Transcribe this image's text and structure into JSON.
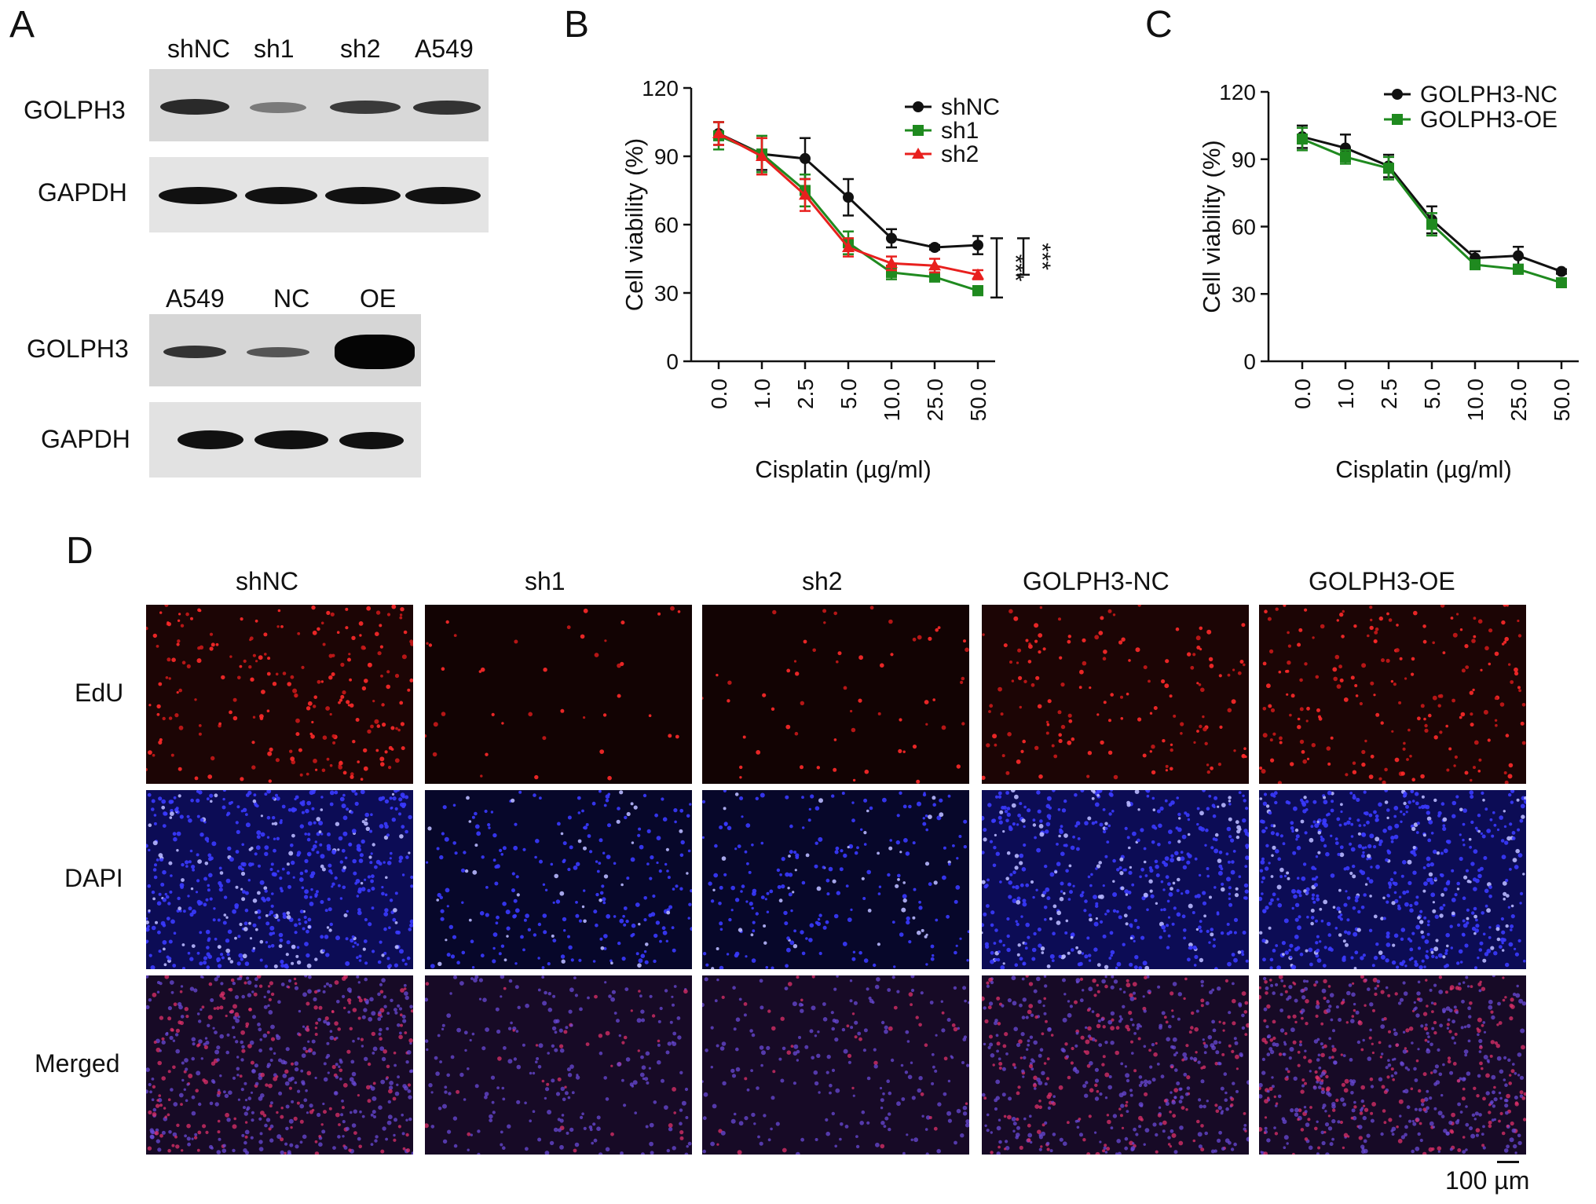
{
  "panels": {
    "A": "A",
    "B": "B",
    "C": "C",
    "D": "D"
  },
  "panel_a": {
    "top_lanes": [
      "shNC",
      "sh1",
      "sh2",
      "A549"
    ],
    "bottom_lanes": [
      "A549",
      "NC",
      "OE"
    ],
    "top_rows": [
      "GOLPH3",
      "GAPDH"
    ],
    "bottom_rows": [
      "GOLPH3",
      "GAPDH"
    ]
  },
  "chart_data": [
    {
      "type": "line",
      "panel": "B",
      "xlabel": "Cisplatin (µg/ml)",
      "ylabel": "Cell viability (%)",
      "ylim": [
        0,
        120
      ],
      "yticks": [
        0,
        30,
        60,
        90,
        120
      ],
      "categories": [
        "0.0",
        "1.0",
        "2.5",
        "5.0",
        "10.0",
        "25.0",
        "50.0"
      ],
      "legend": "top-right",
      "series": [
        {
          "name": "shNC",
          "color": "#111111",
          "marker": "circle",
          "values": [
            100,
            91,
            89,
            72,
            54,
            50,
            51
          ],
          "errors": [
            5,
            7,
            9,
            8,
            4,
            1,
            4
          ]
        },
        {
          "name": "sh1",
          "color": "#1f8a1f",
          "marker": "square",
          "values": [
            99,
            91,
            75,
            52,
            39,
            37,
            31
          ],
          "errors": [
            6,
            8,
            7,
            5,
            3,
            2,
            2
          ]
        },
        {
          "name": "sh2",
          "color": "#e8201e",
          "marker": "triangle",
          "values": [
            100,
            90,
            73,
            50,
            43,
            42,
            38
          ],
          "errors": [
            5,
            8,
            7,
            4,
            3,
            3,
            2
          ]
        }
      ],
      "significance": [
        "***",
        "***"
      ]
    },
    {
      "type": "line",
      "panel": "C",
      "xlabel": "Cisplatin (µg/ml)",
      "ylabel": "Cell viability (%)",
      "ylim": [
        0,
        120
      ],
      "yticks": [
        0,
        30,
        60,
        90,
        120
      ],
      "categories": [
        "0.0",
        "1.0",
        "2.5",
        "5.0",
        "10.0",
        "25.0",
        "50.0"
      ],
      "legend": "top-right",
      "series": [
        {
          "name": "GOLPH3-NC",
          "color": "#111111",
          "marker": "circle",
          "values": [
            100,
            95,
            87,
            63,
            46,
            47,
            40
          ],
          "errors": [
            5,
            6,
            5,
            6,
            3,
            4,
            1
          ]
        },
        {
          "name": "GOLPH3-OE",
          "color": "#1f8a1f",
          "marker": "square",
          "values": [
            99,
            91,
            86,
            61,
            43,
            41,
            35
          ],
          "errors": [
            5,
            3,
            5,
            5,
            2,
            2,
            2
          ]
        }
      ]
    }
  ],
  "panel_d": {
    "columns": [
      "shNC",
      "sh1",
      "sh2",
      "GOLPH3-NC",
      "GOLPH3-OE"
    ],
    "rows": [
      "EdU",
      "DAPI",
      "Merged"
    ],
    "scale_bar": "100 µm"
  }
}
